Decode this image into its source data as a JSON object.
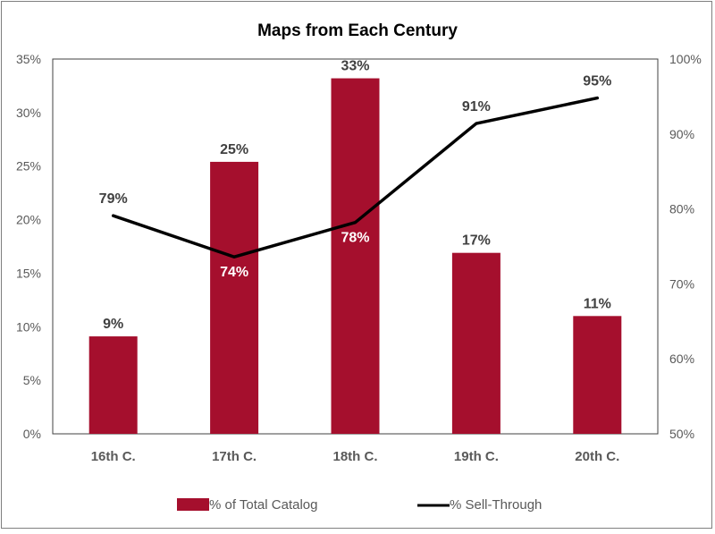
{
  "chart_data": {
    "type": "bar",
    "title": "Maps from Each Century",
    "categories": [
      "16th C.",
      "17th C.",
      "18th C.",
      "19th C.",
      "20th C."
    ],
    "series": [
      {
        "name": "% of Total Catalog",
        "kind": "bar",
        "axis": "left",
        "values": [
          9.1,
          25.4,
          33.2,
          16.9,
          11.0
        ],
        "labels": [
          "9%",
          "25%",
          "33%",
          "17%",
          "11%"
        ],
        "color": "#A50F2D"
      },
      {
        "name": "% Sell-Through",
        "kind": "line",
        "axis": "right",
        "values": [
          79.1,
          73.6,
          78.2,
          91.4,
          94.8
        ],
        "labels": [
          "79%",
          "74%",
          "78%",
          "91%",
          "95%"
        ],
        "color": "#000000"
      }
    ],
    "y_left": {
      "min": 0,
      "max": 35,
      "step": 5,
      "ticks": [
        "0%",
        "5%",
        "10%",
        "15%",
        "20%",
        "25%",
        "30%",
        "35%"
      ]
    },
    "y_right": {
      "min": 50,
      "max": 100,
      "step": 10,
      "ticks": [
        "50%",
        "60%",
        "70%",
        "80%",
        "90%",
        "100%"
      ]
    },
    "grid": false,
    "legend": "bottom"
  }
}
